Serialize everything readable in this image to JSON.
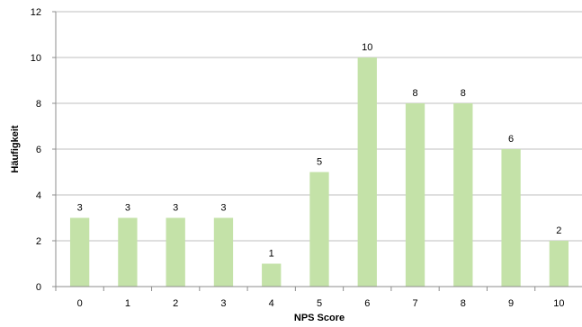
{
  "chart_data": {
    "type": "bar",
    "categories": [
      "0",
      "1",
      "2",
      "3",
      "4",
      "5",
      "6",
      "7",
      "8",
      "9",
      "10"
    ],
    "values": [
      3,
      3,
      3,
      3,
      1,
      5,
      10,
      8,
      8,
      6,
      2
    ],
    "data_labels": [
      "3",
      "3",
      "3",
      "3",
      "1",
      "5",
      "10",
      "8",
      "8",
      "6",
      "2"
    ],
    "title": "",
    "xlabel": "NPS Score",
    "ylabel": "Häufigkeit",
    "ylim": [
      0,
      12
    ],
    "yticks": [
      "0",
      "2",
      "4",
      "6",
      "8",
      "10",
      "12"
    ],
    "grid": true,
    "legend": "none",
    "bar_color": "#c4e2a8"
  }
}
